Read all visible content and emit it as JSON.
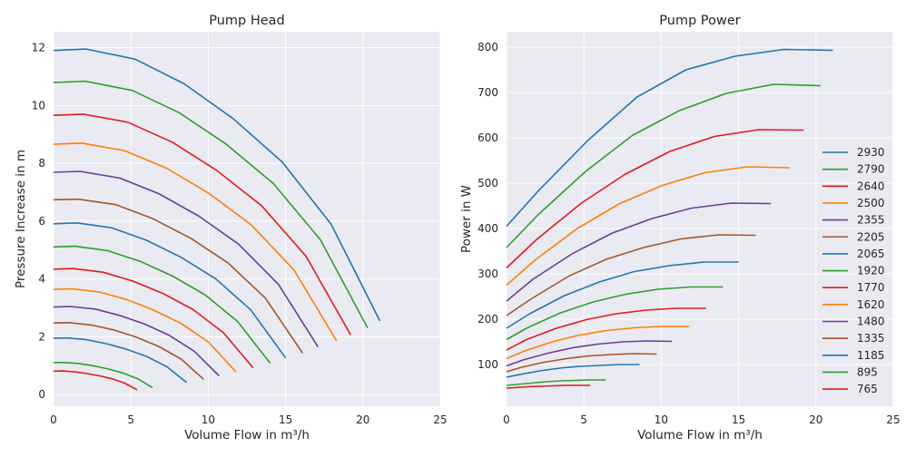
{
  "chart_data": [
    {
      "type": "line",
      "title": "Pump Head",
      "xlabel": "Volume Flow in m³/h",
      "ylabel": "Pressure Increase in m",
      "xlim": [
        0,
        25
      ],
      "ylim": [
        -0.4,
        12.55
      ],
      "xticks": [
        0,
        5,
        10,
        15,
        20,
        25
      ],
      "yticks": [
        0,
        2,
        4,
        6,
        8,
        10,
        12
      ],
      "grid": true,
      "background": "#eaeaf2",
      "series": [
        {
          "x": [
            0,
            2.11,
            5.28,
            8.44,
            11.6,
            14.77,
            17.94,
            21.1
          ],
          "y": [
            11.9,
            11.95,
            11.6,
            10.75,
            9.55,
            8.05,
            5.9,
            2.55
          ]
        },
        {
          "x": [
            0,
            2.03,
            5.08,
            8.12,
            11.17,
            14.21,
            17.26,
            20.3
          ],
          "y": [
            10.79,
            10.84,
            10.52,
            9.75,
            8.66,
            7.3,
            5.35,
            2.31
          ]
        },
        {
          "x": [
            0,
            1.92,
            4.8,
            7.68,
            10.56,
            13.44,
            16.32,
            19.2
          ],
          "y": [
            9.66,
            9.7,
            9.42,
            8.73,
            7.75,
            6.54,
            4.79,
            2.07
          ]
        },
        {
          "x": [
            0,
            1.83,
            4.58,
            7.32,
            10.07,
            12.81,
            15.56,
            18.3
          ],
          "y": [
            8.66,
            8.7,
            8.44,
            7.83,
            6.95,
            5.86,
            4.3,
            1.86
          ]
        },
        {
          "x": [
            0,
            1.71,
            4.28,
            6.84,
            9.41,
            11.97,
            14.54,
            17.1
          ],
          "y": [
            7.69,
            7.72,
            7.49,
            6.94,
            6.17,
            5.2,
            3.81,
            1.65
          ]
        },
        {
          "x": [
            0,
            1.61,
            4.03,
            6.44,
            8.86,
            11.27,
            13.69,
            16.1
          ],
          "y": [
            6.74,
            6.76,
            6.57,
            6.08,
            5.41,
            4.56,
            3.34,
            1.44
          ]
        },
        {
          "x": [
            0,
            1.5,
            3.75,
            6,
            8.25,
            10.5,
            12.75,
            15
          ],
          "y": [
            5.91,
            5.94,
            5.77,
            5.34,
            4.75,
            4.0,
            2.93,
            1.27
          ]
        },
        {
          "x": [
            0,
            1.4,
            3.5,
            5.6,
            7.7,
            9.8,
            11.9,
            14
          ],
          "y": [
            5.11,
            5.13,
            4.98,
            4.61,
            4.1,
            3.45,
            2.53,
            1.09
          ]
        },
        {
          "x": [
            0,
            1.29,
            3.23,
            5.16,
            7.1,
            9.03,
            10.97,
            12.9
          ],
          "y": [
            4.34,
            4.36,
            4.23,
            3.92,
            3.49,
            2.94,
            2.15,
            0.93
          ]
        },
        {
          "x": [
            0,
            1.18,
            2.95,
            4.72,
            6.49,
            8.26,
            10.03,
            11.8
          ],
          "y": [
            3.64,
            3.66,
            3.55,
            3.29,
            2.92,
            2.46,
            1.81,
            0.78
          ]
        },
        {
          "x": [
            0,
            1.07,
            2.68,
            4.28,
            5.89,
            7.49,
            9.1,
            10.7
          ],
          "y": [
            3.03,
            3.05,
            2.96,
            2.74,
            2.44,
            2.05,
            1.5,
            0.65
          ]
        },
        {
          "x": [
            0,
            0.97,
            2.43,
            3.88,
            5.34,
            6.79,
            8.25,
            9.7
          ],
          "y": [
            2.48,
            2.49,
            2.41,
            2.24,
            1.99,
            1.67,
            1.23,
            0.53
          ]
        },
        {
          "x": [
            0,
            0.86,
            2.15,
            3.44,
            4.73,
            6.02,
            7.31,
            8.6
          ],
          "y": [
            1.95,
            1.96,
            1.9,
            1.76,
            1.57,
            1.32,
            0.97,
            0.42
          ]
        },
        {
          "x": [
            0,
            0.64,
            1.6,
            2.56,
            3.52,
            4.48,
            5.44,
            6.4
          ],
          "y": [
            1.11,
            1.11,
            1.08,
            1.0,
            0.89,
            0.75,
            0.55,
            0.24
          ]
        },
        {
          "x": [
            0,
            0.54,
            1.35,
            2.16,
            2.97,
            3.78,
            4.59,
            5.4
          ],
          "y": [
            0.81,
            0.82,
            0.79,
            0.73,
            0.65,
            0.55,
            0.4,
            0.17
          ]
        }
      ]
    },
    {
      "type": "line",
      "title": "Pump Power",
      "xlabel": "Volume Flow in m³/h",
      "ylabel": "Power in W",
      "xlim": [
        0,
        25
      ],
      "ylim": [
        8,
        834
      ],
      "xticks": [
        0,
        5,
        10,
        15,
        20,
        25
      ],
      "yticks": [
        100,
        200,
        300,
        400,
        500,
        600,
        700,
        800
      ],
      "grid": true,
      "background": "#eaeaf2",
      "legend": "right",
      "series": [
        {
          "name": "2930",
          "x": [
            0,
            2.11,
            5.28,
            8.44,
            11.6,
            14.77,
            17.94,
            21.1
          ],
          "y": [
            405,
            485,
            595,
            690,
            750,
            780,
            795,
            793
          ]
        },
        {
          "name": "2790",
          "x": [
            0,
            2.03,
            5.08,
            8.12,
            11.17,
            14.21,
            17.26,
            20.3
          ],
          "y": [
            358,
            430,
            525,
            605,
            660,
            698,
            718,
            715
          ]
        },
        {
          "name": "2640",
          "x": [
            0,
            1.92,
            4.8,
            7.68,
            10.56,
            13.44,
            16.32,
            19.2
          ],
          "y": [
            313,
            375,
            455,
            520,
            570,
            603,
            618,
            617
          ]
        },
        {
          "name": "2500",
          "x": [
            0,
            1.83,
            4.58,
            7.32,
            10.07,
            12.81,
            15.56,
            18.3
          ],
          "y": [
            275,
            330,
            400,
            455,
            495,
            523,
            536,
            534
          ]
        },
        {
          "name": "2355",
          "x": [
            0,
            1.71,
            4.28,
            6.84,
            9.41,
            11.97,
            14.54,
            17.1
          ],
          "y": [
            240,
            288,
            345,
            390,
            422,
            445,
            456,
            455
          ]
        },
        {
          "name": "2205",
          "x": [
            0,
            1.61,
            4.03,
            6.44,
            8.86,
            11.27,
            13.69,
            16.1
          ],
          "y": [
            208,
            245,
            295,
            332,
            358,
            377,
            386,
            385
          ]
        },
        {
          "name": "2065",
          "x": [
            0,
            1.5,
            3.75,
            6,
            8.25,
            10.5,
            12.75,
            15
          ],
          "y": [
            180,
            212,
            252,
            282,
            305,
            318,
            326,
            326
          ]
        },
        {
          "name": "1920",
          "x": [
            0,
            1.4,
            3.5,
            5.6,
            7.7,
            9.8,
            11.9,
            14
          ],
          "y": [
            155,
            182,
            214,
            238,
            255,
            266,
            271,
            271
          ]
        },
        {
          "name": "1770",
          "x": [
            0,
            1.29,
            3.23,
            5.16,
            7.1,
            9.03,
            10.97,
            12.9
          ],
          "y": [
            132,
            155,
            180,
            199,
            212,
            220,
            224,
            224
          ]
        },
        {
          "name": "1620",
          "x": [
            0,
            1.18,
            2.95,
            4.72,
            6.49,
            8.26,
            10.03,
            11.8
          ],
          "y": [
            113,
            130,
            150,
            165,
            175,
            181,
            184,
            184
          ]
        },
        {
          "name": "1480",
          "x": [
            0,
            1.07,
            2.68,
            4.28,
            5.89,
            7.49,
            9.1,
            10.7
          ],
          "y": [
            97,
            110,
            125,
            137,
            145,
            150,
            152,
            151
          ]
        },
        {
          "name": "1335",
          "x": [
            0,
            0.97,
            2.43,
            3.88,
            5.34,
            6.79,
            8.25,
            9.7
          ],
          "y": [
            84,
            94,
            105,
            113,
            119,
            122,
            124,
            123
          ]
        },
        {
          "name": "1185",
          "x": [
            0,
            0.86,
            2.15,
            3.44,
            4.73,
            6.02,
            7.31,
            8.6
          ],
          "y": [
            72,
            78,
            86,
            92,
            96,
            98,
            100,
            100
          ]
        },
        {
          "name": "895",
          "x": [
            0,
            0.64,
            1.6,
            2.56,
            3.52,
            4.48,
            5.44,
            6.4
          ],
          "y": [
            54,
            56,
            59,
            62,
            64,
            65,
            66,
            66
          ]
        },
        {
          "name": "765",
          "x": [
            0,
            0.54,
            1.35,
            2.16,
            2.97,
            3.78,
            4.59,
            5.4
          ],
          "y": [
            48,
            49,
            51,
            52,
            53,
            54,
            54,
            54
          ]
        }
      ]
    }
  ],
  "colors": [
    "#1f77b4",
    "#2ca02c",
    "#e31a1c",
    "#ff7f00",
    "#6a3d9a",
    "#a65628"
  ]
}
